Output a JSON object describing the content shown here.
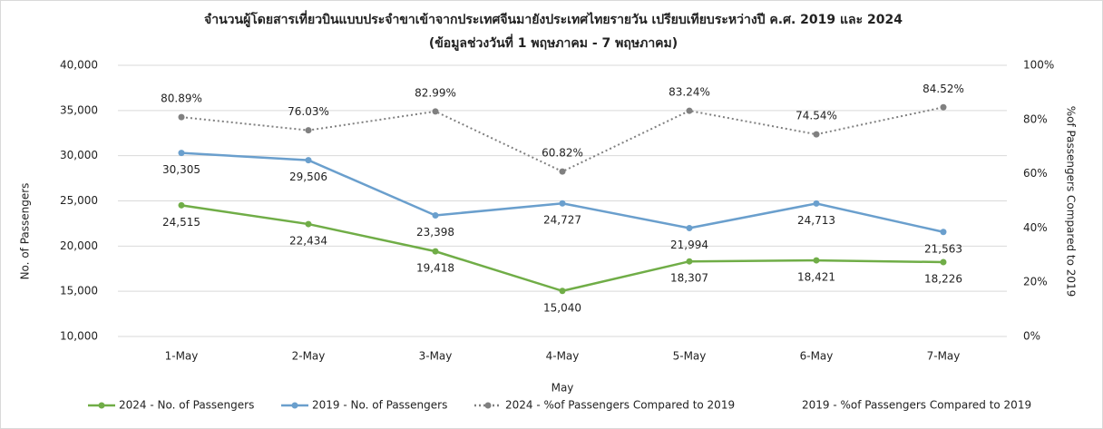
{
  "chart_data": {
    "type": "line",
    "title": "จำนวนผู้โดยสารเที่ยวบินแบบประจำขาเข้าจากประเทศจีนมายังประเทศไทยรายวัน เปรียบเทียบระหว่างปี ค.ศ. 2019 และ 2024",
    "subtitle": "(ข้อมูลช่วงวันที่ 1 พฤษภาคม - 7 พฤษภาคม)",
    "x_label": "May",
    "y_label": "No. of Passengers",
    "y2_label": "%of Passengers Compared to 2019",
    "categories": [
      "1-May",
      "2-May",
      "3-May",
      "4-May",
      "5-May",
      "6-May",
      "7-May"
    ],
    "series": [
      {
        "name": "2024 - No. of Passengers",
        "color": "#70ad47",
        "values": [
          24515,
          22434,
          19418,
          15040,
          18307,
          18421,
          18226
        ],
        "value_labels": [
          "24,515",
          "22,434",
          "19,418",
          "15,040",
          "18,307",
          "18,421",
          "18,226"
        ]
      },
      {
        "name": "2019 - No. of Passengers",
        "color": "#6a9fcd",
        "values": [
          30305,
          29506,
          23398,
          24727,
          21994,
          24713,
          21563
        ],
        "value_labels": [
          "30,305",
          "29,506",
          "23,398",
          "24,727",
          "21,994",
          "24,713",
          "21,563"
        ]
      },
      {
        "name": "2024 - %of Passengers Compared to 2019",
        "color": "#808080",
        "axis": "y2",
        "dashed": true,
        "values": [
          80.89,
          76.03,
          82.99,
          60.82,
          83.24,
          74.54,
          84.52
        ],
        "value_labels": [
          "80.89%",
          "76.03%",
          "82.99%",
          "60.82%",
          "83.24%",
          "74.54%",
          "84.52%"
        ]
      },
      {
        "name": "2019 - %of Passengers Compared to 2019",
        "axis": "y2",
        "values": [
          null,
          null,
          null,
          null,
          null,
          null,
          null
        ]
      }
    ],
    "ylim": [
      10000,
      40000
    ],
    "yticks": [
      {
        "value": 10000,
        "label": "10,000"
      },
      {
        "value": 15000,
        "label": "15,000"
      },
      {
        "value": 20000,
        "label": "20,000"
      },
      {
        "value": 25000,
        "label": "25,000"
      },
      {
        "value": 30000,
        "label": "30,000"
      },
      {
        "value": 35000,
        "label": "35,000"
      },
      {
        "value": 40000,
        "label": "40,000"
      }
    ],
    "y2lim": [
      0,
      100
    ],
    "y2ticks": [
      {
        "value": 0,
        "label": "0%"
      },
      {
        "value": 20,
        "label": "20%"
      },
      {
        "value": 40,
        "label": "40%"
      },
      {
        "value": 60,
        "label": "60%"
      },
      {
        "value": 80,
        "label": "80%"
      },
      {
        "value": 100,
        "label": "100%"
      }
    ],
    "grid": true,
    "legend": "bottom"
  }
}
